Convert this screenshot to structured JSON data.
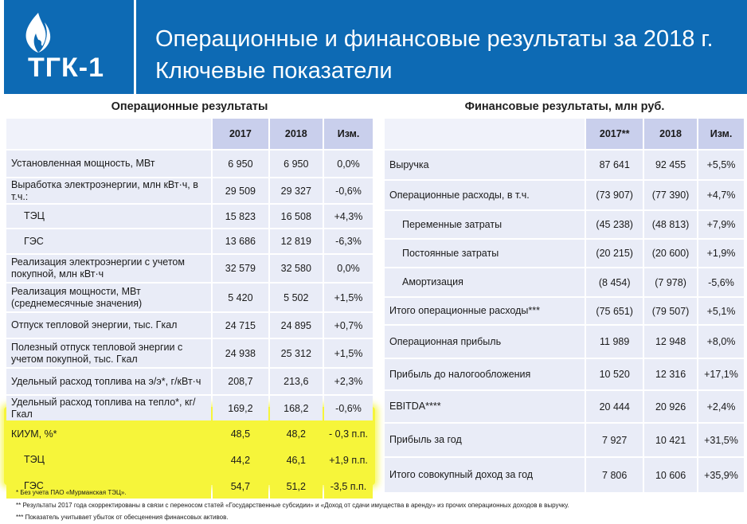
{
  "header": {
    "logo_text": "ТГК-1",
    "title_line1": "Операционные и финансовые результаты за 2018 г.",
    "title_line2": "Ключевые показатели"
  },
  "operational": {
    "title": "Операционные результаты",
    "columns": [
      "",
      "2017",
      "2018",
      "Изм."
    ],
    "rows": [
      {
        "label": "Установленная мощность, МВт",
        "v2017": "6 950",
        "v2018": "6 950",
        "change": "0,0%"
      },
      {
        "label": "Выработка электроэнергии, млн кВт·ч, в т.ч.:",
        "v2017": "29 509",
        "v2018": "29 327",
        "change": "-0,6%"
      },
      {
        "label": "ТЭЦ",
        "v2017": "15 823",
        "v2018": "16 508",
        "change": "+4,3%"
      },
      {
        "label": "ГЭС",
        "v2017": "13 686",
        "v2018": "12 819",
        "change": "-6,3%"
      },
      {
        "label": "Реализация электроэнергии с учетом покупной, млн кВт·ч",
        "v2017": "32 579",
        "v2018": "32 580",
        "change": "0,0%"
      },
      {
        "label": "Реализация мощности, МВт (среднемесячные значения)",
        "v2017": "5 420",
        "v2018": "5 502",
        "change": "+1,5%"
      },
      {
        "label": "Отпуск тепловой энергии, тыс. Гкал",
        "v2017": "24 715",
        "v2018": "24 895",
        "change": "+0,7%"
      },
      {
        "label": "Полезный отпуск тепловой энергии с учетом покупной, тыс. Гкал",
        "v2017": "24 938",
        "v2018": "25 312",
        "change": "+1,5%"
      },
      {
        "label": "Удельный расход топлива на э/э*, г/кВт·ч",
        "v2017": "208,7",
        "v2018": "213,6",
        "change": "+2,3%"
      },
      {
        "label": "Удельный расход топлива на тепло*, кг/Гкал",
        "v2017": "169,2",
        "v2018": "168,2",
        "change": "-0,6%"
      },
      {
        "label": "КИУМ, %*",
        "v2017": "48,5",
        "v2018": "48,2",
        "change": "- 0,3 п.п."
      },
      {
        "label": "ТЭЦ",
        "v2017": "44,2",
        "v2018": "46,1",
        "change": "+1,9 п.п."
      },
      {
        "label": "ГЭС",
        "v2017": "54,7",
        "v2018": "51,2",
        "change": "-3,5 п.п."
      }
    ]
  },
  "financial": {
    "title": "Финансовые результаты, млн руб.",
    "columns": [
      "",
      "2017**",
      "2018",
      "Изм."
    ],
    "rows": [
      {
        "label": "Выручка",
        "v2017": "87 641",
        "v2018": "92 455",
        "change": "+5,5%"
      },
      {
        "label": "Операционные расходы, в т.ч.",
        "v2017": "(73 907)",
        "v2018": "(77 390)",
        "change": "+4,7%"
      },
      {
        "label": "Переменные затраты",
        "v2017": "(45 238)",
        "v2018": "(48 813)",
        "change": "+7,9%"
      },
      {
        "label": "Постоянные затраты",
        "v2017": "(20 215)",
        "v2018": "(20 600)",
        "change": "+1,9%"
      },
      {
        "label": "Амортизация",
        "v2017": "(8 454)",
        "v2018": "(7 978)",
        "change": "-5,6%"
      },
      {
        "label": "Итого операционные расходы***",
        "v2017": "(75 651)",
        "v2018": "(79 507)",
        "change": "+5,1%"
      },
      {
        "label": "Операционная прибыль",
        "v2017": "11 989",
        "v2018": "12 948",
        "change": "+8,0%"
      },
      {
        "label": "Прибыль до налогообложения",
        "v2017": "10 520",
        "v2018": "12 316",
        "change": "+17,1%"
      },
      {
        "label": "EBITDA****",
        "v2017": "20 444",
        "v2018": "20 926",
        "change": "+2,4%"
      },
      {
        "label": "Прибыль за год",
        "v2017": "7 927",
        "v2018": "10 421",
        "change": "+31,5%"
      },
      {
        "label": "Итого совокупный доход за год",
        "v2017": "7 806",
        "v2018": "10 606",
        "change": "+35,9%"
      }
    ]
  },
  "footnotes": [
    "* Без учета ПАО «Мурманская ТЭЦ».",
    "** Результаты 2017 года скорректированы в связи с переносом статей «Государственные субсидии» и «Доход от сдачи имущества в аренду» из прочих операционных доходов в выручку.",
    "*** Показатель учитывает убыток от обесценения финансовых активов."
  ],
  "colors": {
    "brand_blue": "#0d6ab4",
    "header_cell": "#c9cfec",
    "body_cell": "#e9ecf7",
    "highlight": "#f6f53a"
  }
}
